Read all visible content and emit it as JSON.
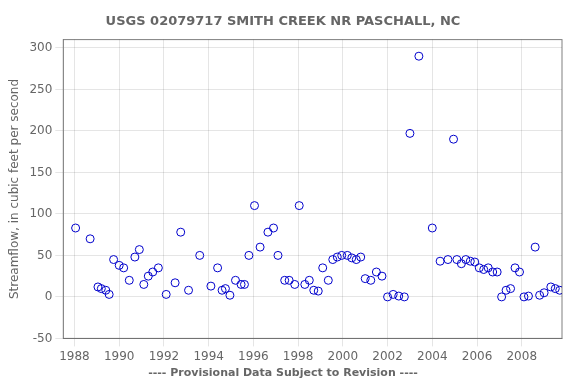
{
  "chart_data": {
    "type": "scatter",
    "title": "USGS 02079717 SMITH CREEK NR PASCHALL, NC",
    "ylabel": "Streamflow, in cubic feet per second",
    "annotations": [
      "---- Provisional Data Subject to Revision ----"
    ],
    "xlim": [
      1987.5,
      2009.8
    ],
    "ylim": [
      -50,
      310
    ],
    "xticks": [
      1988,
      1990,
      1992,
      1994,
      1996,
      1998,
      2000,
      2002,
      2004,
      2006,
      2008
    ],
    "yticks": [
      -50,
      0,
      50,
      100,
      150,
      200,
      250,
      300
    ],
    "grid": true,
    "series": [
      {
        "color": "#0000CC",
        "marker": "circle",
        "x": [
          1988.05,
          1988.7,
          1989.05,
          1989.2,
          1989.4,
          1989.55,
          1989.75,
          1990.0,
          1990.2,
          1990.45,
          1990.7,
          1990.9,
          1991.1,
          1991.3,
          1991.5,
          1991.75,
          1992.1,
          1992.5,
          1992.75,
          1993.1,
          1993.6,
          1994.1,
          1994.4,
          1994.6,
          1994.75,
          1994.95,
          1995.2,
          1995.45,
          1995.6,
          1995.8,
          1996.05,
          1996.3,
          1996.65,
          1996.9,
          1997.1,
          1997.4,
          1997.6,
          1997.85,
          1998.05,
          1998.3,
          1998.5,
          1998.7,
          1998.9,
          1999.1,
          1999.35,
          1999.55,
          1999.75,
          1999.95,
          2000.2,
          2000.4,
          2000.6,
          2000.8,
          2001.0,
          2001.25,
          2001.5,
          2001.75,
          2002.0,
          2002.25,
          2002.5,
          2002.75,
          2003.0,
          2003.4,
          2004.0,
          2004.35,
          2004.7,
          2004.95,
          2005.1,
          2005.3,
          2005.5,
          2005.7,
          2005.9,
          2006.1,
          2006.3,
          2006.5,
          2006.7,
          2006.9,
          2007.1,
          2007.3,
          2007.5,
          2007.7,
          2007.9,
          2008.1,
          2008.3,
          2008.6,
          2008.8,
          2009.0,
          2009.3,
          2009.5,
          2009.7
        ],
        "values": [
          83,
          70,
          12,
          10,
          8,
          3,
          45,
          38,
          35,
          20,
          48,
          57,
          15,
          25,
          30,
          35,
          3,
          17,
          78,
          8,
          50,
          13,
          35,
          8,
          10,
          2,
          20,
          15,
          15,
          50,
          110,
          60,
          78,
          83,
          50,
          20,
          20,
          15,
          110,
          15,
          20,
          8,
          7,
          35,
          20,
          45,
          48,
          50,
          50,
          47,
          45,
          48,
          22,
          20,
          30,
          25,
          0,
          3,
          1,
          0,
          197,
          290,
          83,
          43,
          45,
          190,
          45,
          40,
          45,
          43,
          42,
          35,
          33,
          35,
          30,
          30,
          0,
          8,
          10,
          35,
          30,
          0,
          1,
          60,
          2,
          5,
          12,
          10,
          8
        ]
      }
    ]
  }
}
